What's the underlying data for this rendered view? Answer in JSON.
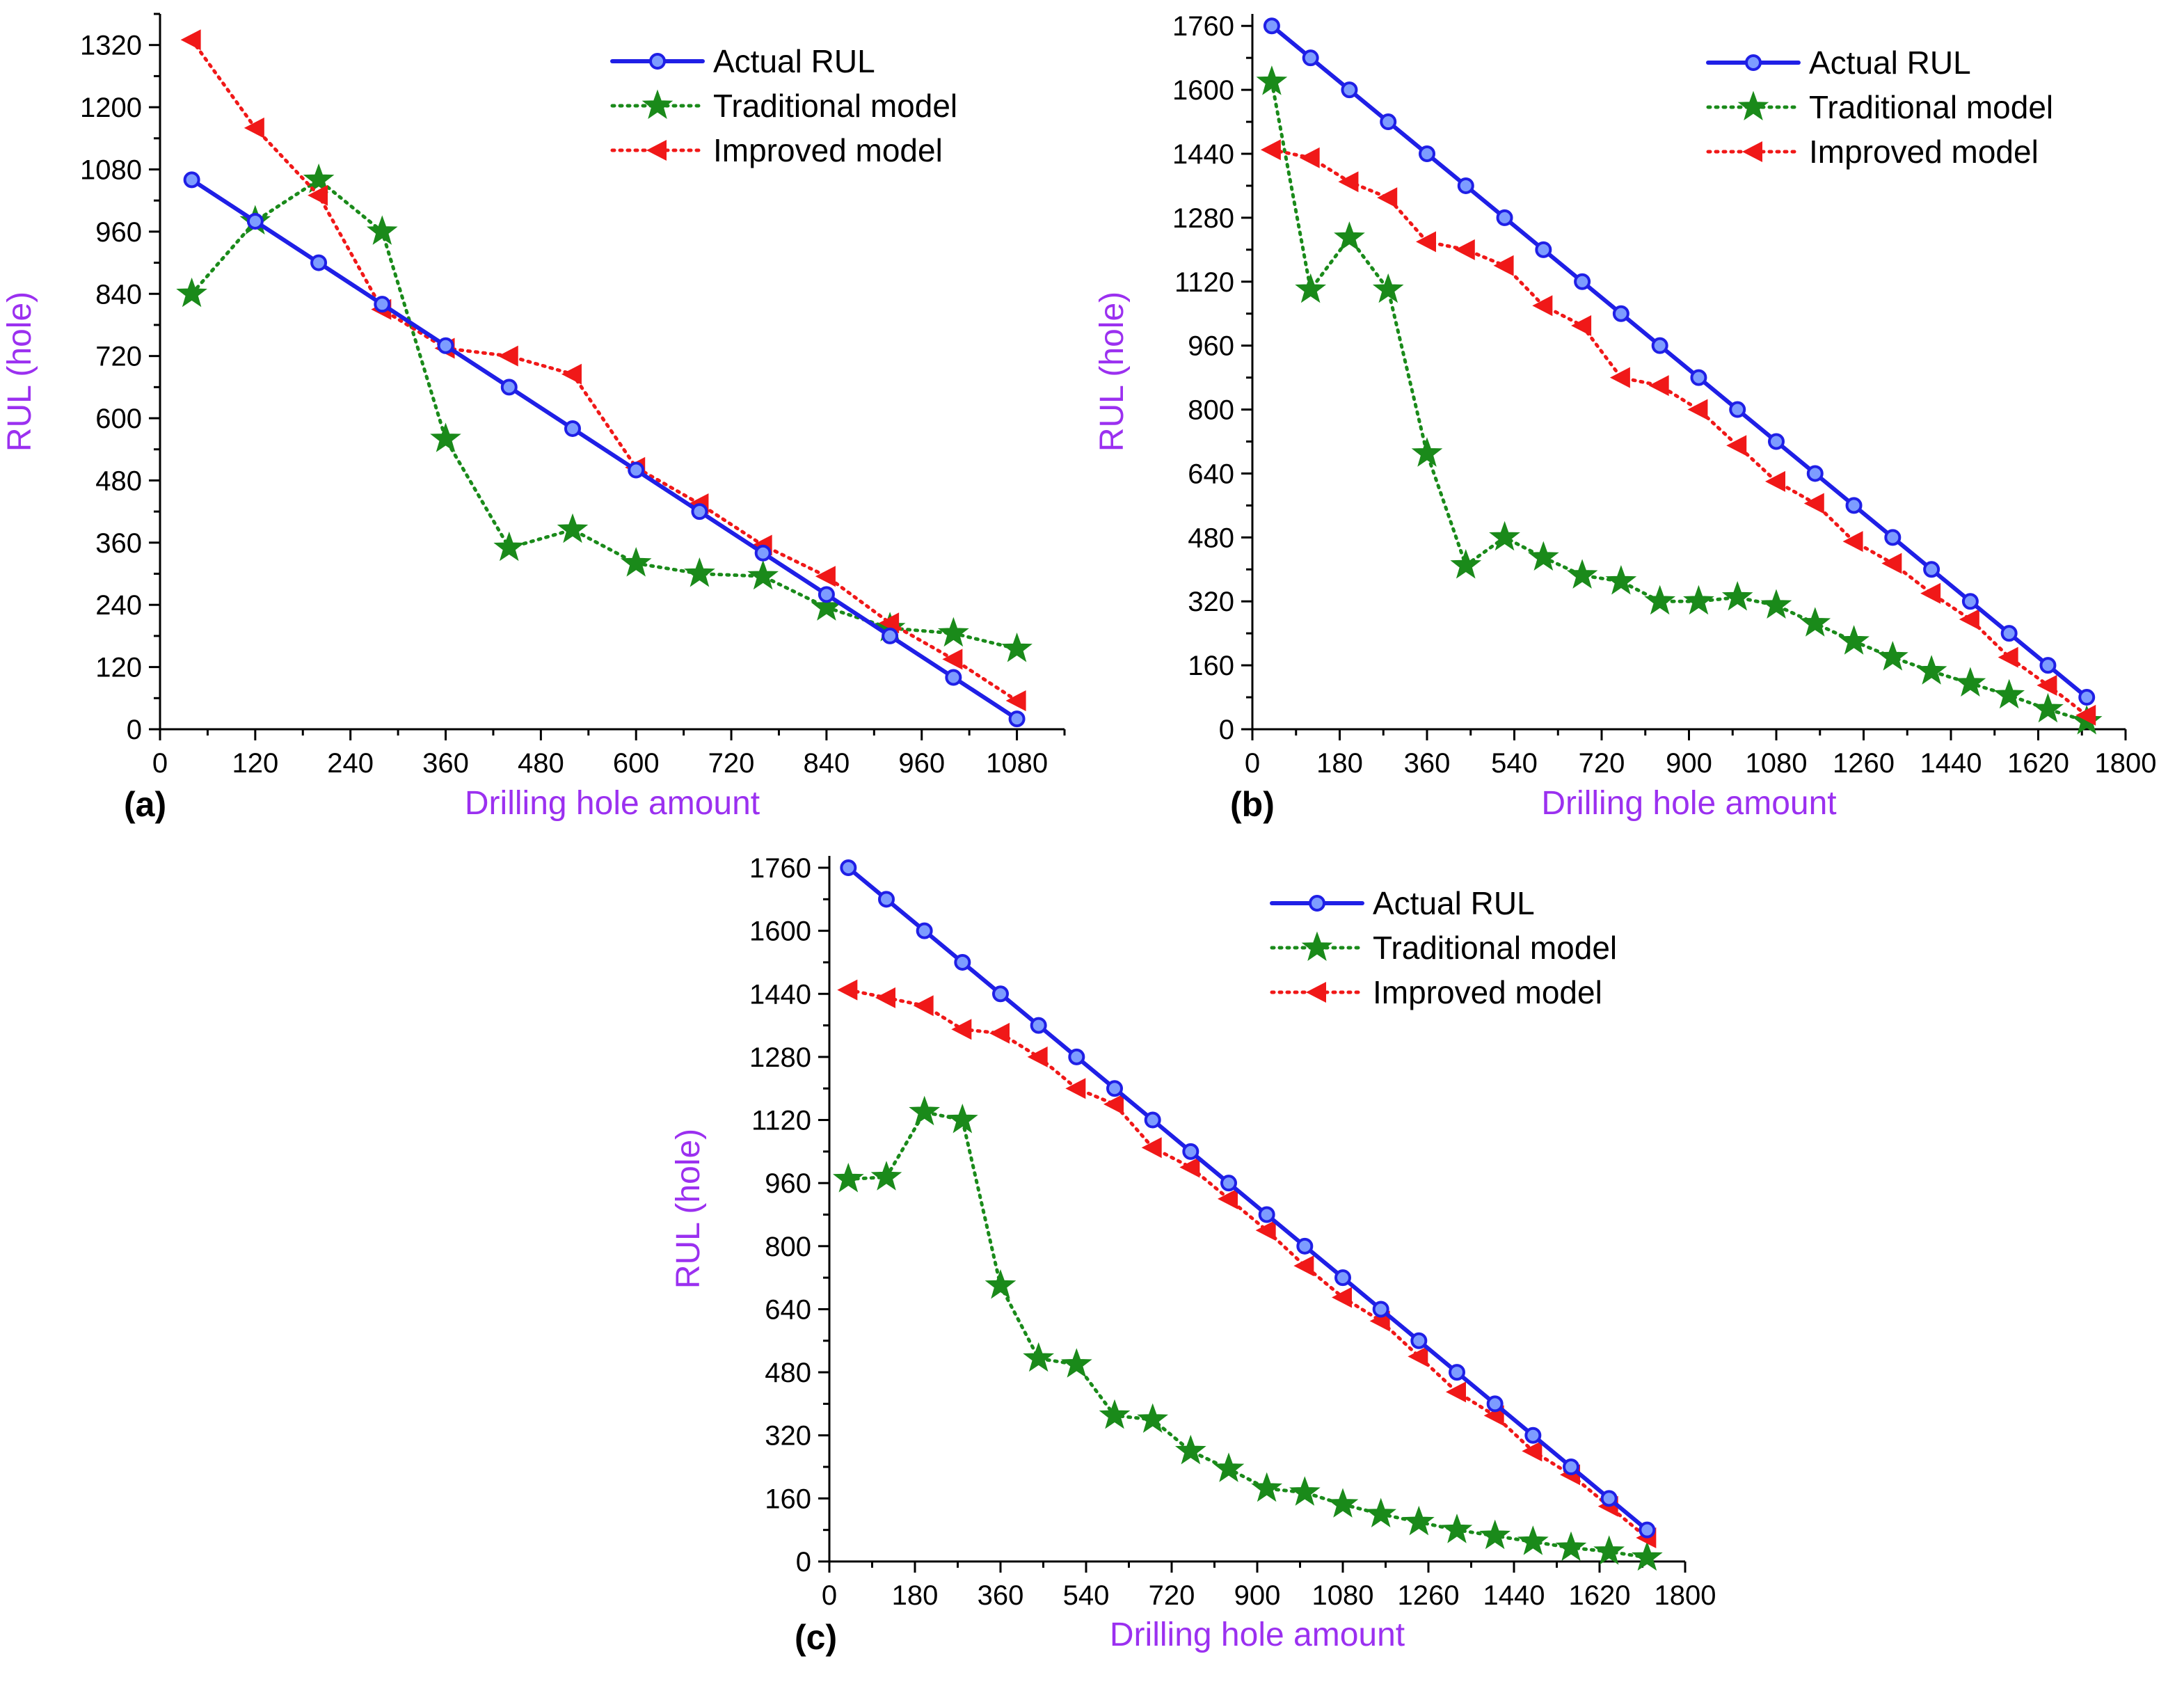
{
  "colors": {
    "actual": "#1f1fe6",
    "traditional": "#1a8a1a",
    "improved": "#f01818",
    "axis_title": "#9b30f0",
    "axis": "#000000"
  },
  "legend_labels": [
    "Actual RUL",
    "Traditional model",
    "Improved model"
  ],
  "chart_data": [
    {
      "type": "line",
      "panel_label": "(a)",
      "xlabel": "Drilling hole amount",
      "ylabel": "RUL (hole)",
      "xlim": [
        0,
        1140
      ],
      "ylim": [
        0,
        1380
      ],
      "xticks": [
        0,
        120,
        240,
        360,
        480,
        600,
        720,
        840,
        960,
        1080
      ],
      "yticks": [
        0,
        120,
        240,
        360,
        480,
        600,
        720,
        840,
        960,
        1080,
        1200,
        1320
      ],
      "legend_position": "top-right",
      "x": [
        40,
        120,
        200,
        280,
        360,
        440,
        520,
        600,
        680,
        760,
        840,
        920,
        1000,
        1080
      ],
      "series": [
        {
          "name": "Actual RUL",
          "marker": "circle",
          "line": "solid",
          "values": [
            1060,
            980,
            900,
            820,
            740,
            660,
            580,
            500,
            420,
            340,
            260,
            180,
            100,
            20
          ]
        },
        {
          "name": "Traditional model",
          "marker": "star",
          "line": "dotted",
          "values": [
            840,
            980,
            1060,
            960,
            560,
            350,
            385,
            320,
            300,
            295,
            235,
            195,
            185,
            155
          ]
        },
        {
          "name": "Improved model",
          "marker": "triangle-left",
          "line": "dotted",
          "values": [
            1330,
            1160,
            1030,
            810,
            735,
            720,
            685,
            505,
            435,
            355,
            295,
            205,
            135,
            55
          ]
        }
      ]
    },
    {
      "type": "line",
      "panel_label": "(b)",
      "xlabel": "Drilling hole amount",
      "ylabel": "RUL (hole)",
      "xlim": [
        0,
        1800
      ],
      "ylim": [
        0,
        1790
      ],
      "xticks": [
        0,
        180,
        360,
        540,
        720,
        900,
        1080,
        1260,
        1440,
        1620,
        1800
      ],
      "yticks": [
        0,
        160,
        320,
        480,
        640,
        800,
        960,
        1120,
        1280,
        1440,
        1600,
        1760
      ],
      "legend_position": "top-right",
      "x": [
        40,
        120,
        200,
        280,
        360,
        440,
        520,
        600,
        680,
        760,
        840,
        920,
        1000,
        1080,
        1160,
        1240,
        1320,
        1400,
        1480,
        1560,
        1640,
        1720
      ],
      "series": [
        {
          "name": "Actual RUL",
          "marker": "circle",
          "line": "solid",
          "values": [
            1760,
            1680,
            1600,
            1520,
            1440,
            1360,
            1280,
            1200,
            1120,
            1040,
            960,
            880,
            800,
            720,
            640,
            560,
            480,
            400,
            320,
            240,
            160,
            80
          ]
        },
        {
          "name": "Traditional model",
          "marker": "star",
          "line": "dotted",
          "values": [
            1620,
            1100,
            1230,
            1100,
            690,
            410,
            480,
            430,
            385,
            370,
            320,
            320,
            330,
            310,
            265,
            220,
            180,
            145,
            115,
            85,
            50,
            20
          ]
        },
        {
          "name": "Improved model",
          "marker": "triangle-left",
          "line": "dotted",
          "values": [
            1450,
            1430,
            1370,
            1330,
            1220,
            1200,
            1160,
            1060,
            1010,
            880,
            860,
            800,
            710,
            620,
            565,
            470,
            415,
            340,
            275,
            180,
            110,
            35
          ]
        }
      ]
    },
    {
      "type": "line",
      "panel_label": "(c)",
      "xlabel": "Drilling hole amount",
      "ylabel": "RUL (hole)",
      "xlim": [
        0,
        1800
      ],
      "ylim": [
        0,
        1790
      ],
      "xticks": [
        0,
        180,
        360,
        540,
        720,
        900,
        1080,
        1260,
        1440,
        1620,
        1800
      ],
      "yticks": [
        0,
        160,
        320,
        480,
        640,
        800,
        960,
        1120,
        1280,
        1440,
        1600,
        1760
      ],
      "legend_position": "top-right",
      "x": [
        40,
        120,
        200,
        280,
        360,
        440,
        520,
        600,
        680,
        760,
        840,
        920,
        1000,
        1080,
        1160,
        1240,
        1320,
        1400,
        1480,
        1560,
        1640,
        1720
      ],
      "series": [
        {
          "name": "Actual RUL",
          "marker": "circle",
          "line": "solid",
          "values": [
            1760,
            1680,
            1600,
            1520,
            1440,
            1360,
            1280,
            1200,
            1120,
            1040,
            960,
            880,
            800,
            720,
            640,
            560,
            480,
            400,
            320,
            240,
            160,
            80
          ]
        },
        {
          "name": "Traditional model",
          "marker": "star",
          "line": "dotted",
          "values": [
            970,
            975,
            1140,
            1120,
            700,
            515,
            500,
            370,
            360,
            280,
            235,
            185,
            175,
            145,
            120,
            100,
            80,
            65,
            50,
            35,
            25,
            10
          ]
        },
        {
          "name": "Improved model",
          "marker": "triangle-left",
          "line": "dotted",
          "values": [
            1450,
            1430,
            1410,
            1350,
            1340,
            1280,
            1200,
            1160,
            1050,
            1000,
            920,
            840,
            750,
            670,
            610,
            520,
            430,
            370,
            280,
            220,
            140,
            60
          ]
        }
      ]
    }
  ]
}
